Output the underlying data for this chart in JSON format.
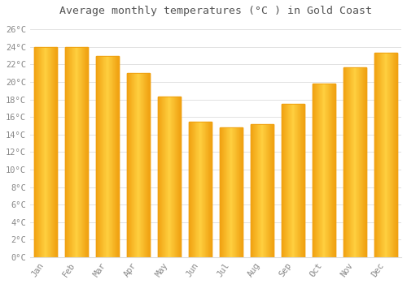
{
  "title": "Average monthly temperatures (°C ) in Gold Coast",
  "months": [
    "Jan",
    "Feb",
    "Mar",
    "Apr",
    "May",
    "Jun",
    "Jul",
    "Aug",
    "Sep",
    "Oct",
    "Nov",
    "Dec"
  ],
  "values": [
    24.0,
    24.0,
    23.0,
    21.0,
    18.3,
    15.5,
    14.8,
    15.2,
    17.5,
    19.8,
    21.7,
    23.3
  ],
  "bar_color_center": "#FFD040",
  "bar_color_edge": "#F0A010",
  "background_color": "#FFFFFF",
  "grid_color": "#DDDDDD",
  "ylim": [
    0,
    27
  ],
  "yticks": [
    0,
    2,
    4,
    6,
    8,
    10,
    12,
    14,
    16,
    18,
    20,
    22,
    24,
    26
  ],
  "ytick_labels": [
    "0°C",
    "2°C",
    "4°C",
    "6°C",
    "8°C",
    "10°C",
    "12°C",
    "14°C",
    "16°C",
    "18°C",
    "20°C",
    "22°C",
    "24°C",
    "26°C"
  ],
  "title_fontsize": 9.5,
  "tick_fontsize": 7.5,
  "tick_font_color": "#888888",
  "title_font_color": "#555555",
  "bar_width": 0.75
}
